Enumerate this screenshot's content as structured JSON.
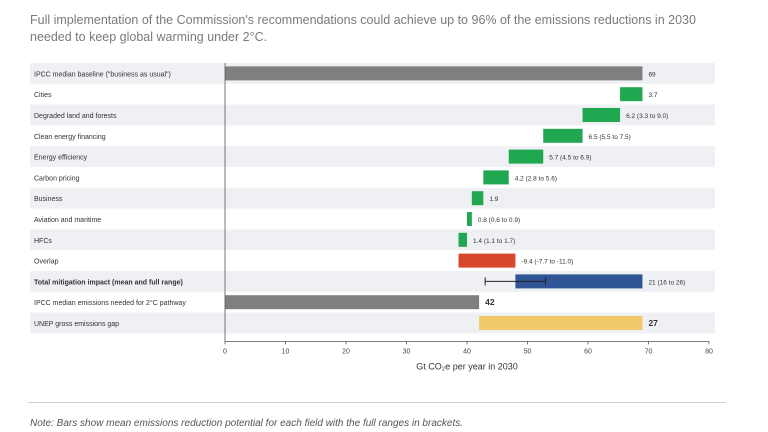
{
  "headline": "Full implementation of the Commission's recommendations could achieve up to 96% of the emissions reductions in 2030 needed to keep global warming under 2°C.",
  "note": "Note: Bars show mean emissions reduction potential for each field with the full ranges in brackets.",
  "chart_data": {
    "type": "bar",
    "orientation": "horizontal-waterfall",
    "title": "",
    "xlabel": "Gt CO₂e per year in 2030",
    "xlim": [
      0,
      80
    ],
    "xticks": [
      "0",
      "10",
      "20",
      "30",
      "40",
      "50",
      "60",
      "70",
      "80"
    ],
    "grid": false,
    "colors": {
      "baseline": "#7f7f7f",
      "reduction": "#1fa84f",
      "overlap": "#d7472b",
      "total": "#2f5597",
      "gap": "#f1c96b",
      "row_band": "#eef0f3"
    },
    "rows": [
      {
        "category": "IPCC median baseline (\"business as usual\")",
        "start": 0,
        "end": 69,
        "label": "69",
        "kind": "baseline",
        "bold": false
      },
      {
        "category": "Cities",
        "start": 65.3,
        "end": 69,
        "label": "3.7",
        "kind": "reduction",
        "bold": false
      },
      {
        "category": "Degraded land and forests",
        "start": 59.1,
        "end": 65.3,
        "label": "6.2 (3.3 to 9.0)",
        "kind": "reduction",
        "bold": false
      },
      {
        "category": "Clean energy financing",
        "start": 52.6,
        "end": 59.1,
        "label": "6.5 (5.5 to 7.5)",
        "kind": "reduction",
        "bold": false
      },
      {
        "category": "Energy efficiency",
        "start": 46.9,
        "end": 52.6,
        "label": "5.7 (4.5 to 6.9)",
        "kind": "reduction",
        "bold": false
      },
      {
        "category": "Carbon pricing",
        "start": 42.7,
        "end": 46.9,
        "label": "4.2 (2.8 to 5.6)",
        "kind": "reduction",
        "bold": false
      },
      {
        "category": "Business",
        "start": 40.8,
        "end": 42.7,
        "label": "1.9",
        "kind": "reduction",
        "bold": false
      },
      {
        "category": "Aviation and maritime",
        "start": 40.0,
        "end": 40.8,
        "label": "0.8 (0.6 to 0.9)",
        "kind": "reduction",
        "bold": false
      },
      {
        "category": "HFCs",
        "start": 38.6,
        "end": 40.0,
        "label": "1.4 (1.1 to 1.7)",
        "kind": "reduction",
        "bold": false
      },
      {
        "category": "Overlap",
        "start": 38.6,
        "end": 48.0,
        "label": "-9.4 (-7.7 to -11.0)",
        "kind": "overlap",
        "bold": false
      },
      {
        "category": "Total mitigation impact (mean and full range)",
        "start": 48.0,
        "end": 69,
        "label": "21 (16 to 26)",
        "kind": "total",
        "bold": true,
        "range": [
          43,
          53
        ]
      },
      {
        "category": "IPCC median emissions needed for 2°C pathway",
        "start": 0,
        "end": 42,
        "label": "42",
        "kind": "baseline",
        "bold": false
      },
      {
        "category": "UNEP gross emissions gap",
        "start": 42,
        "end": 69,
        "label": "27",
        "kind": "gap",
        "bold": false
      }
    ]
  }
}
